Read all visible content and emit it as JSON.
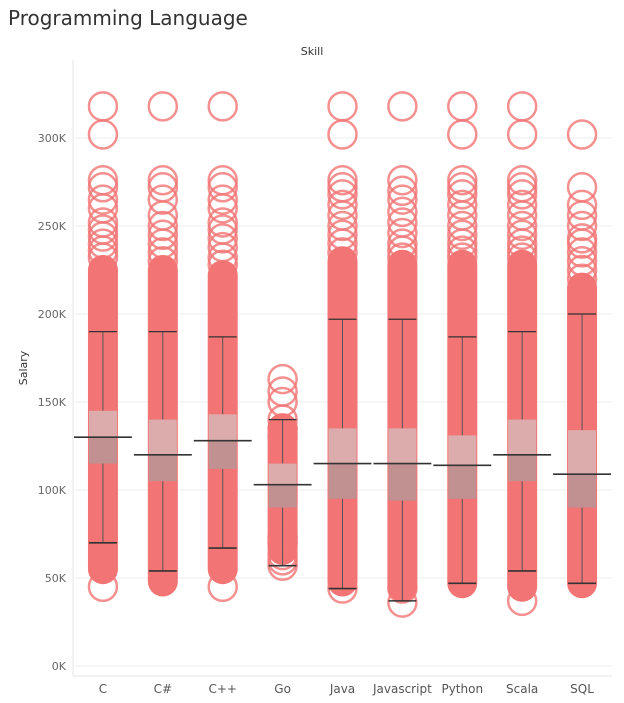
{
  "title": "Programming Language",
  "chart_data": {
    "type": "box",
    "column_header": "Skill",
    "ylabel": "Salary",
    "ylim": [
      0,
      330000
    ],
    "yticks": [
      0,
      50000,
      100000,
      150000,
      200000,
      250000,
      300000
    ],
    "ytick_labels": [
      "0K",
      "50K",
      "100K",
      "150K",
      "200K",
      "250K",
      "300K"
    ],
    "grid": true,
    "colors": {
      "points": "#f27474",
      "box": "#d9b3b3",
      "whisker": "#555555",
      "reference": "#333333"
    },
    "categories": [
      "C",
      "C#",
      "C++",
      "Go",
      "Java",
      "Javascript",
      "Python",
      "Scala",
      "SQL"
    ],
    "series": [
      {
        "category": "C",
        "lower_whisker": 70000,
        "q1": 115000,
        "median": 130000,
        "q3": 145000,
        "upper_whisker": 190000,
        "reference": 130000,
        "dense_min": 55000,
        "dense_max": 225000,
        "outliers": [
          45000,
          232000,
          236000,
          240000,
          244000,
          248000,
          252000,
          260000,
          265000,
          272000,
          276000,
          302000,
          318000
        ]
      },
      {
        "category": "C#",
        "lower_whisker": 54000,
        "q1": 105000,
        "median": 120000,
        "q3": 140000,
        "upper_whisker": 190000,
        "reference": 120000,
        "dense_min": 48000,
        "dense_max": 225000,
        "outliers": [
          230000,
          235000,
          240000,
          245000,
          250000,
          256000,
          265000,
          272000,
          276000,
          318000
        ]
      },
      {
        "category": "C++",
        "lower_whisker": 67000,
        "q1": 112000,
        "median": 128000,
        "q3": 143000,
        "upper_whisker": 187000,
        "reference": 128000,
        "dense_min": 55000,
        "dense_max": 222000,
        "outliers": [
          45000,
          228000,
          232000,
          238000,
          243000,
          248000,
          252000,
          260000,
          265000,
          272000,
          276000,
          318000
        ]
      },
      {
        "category": "Go",
        "lower_whisker": 57000,
        "q1": 90000,
        "median": 103000,
        "q3": 115000,
        "upper_whisker": 140000,
        "reference": 103000,
        "dense_min": 66000,
        "dense_max": 135000,
        "outliers": [
          57000,
          60000,
          63000,
          70000,
          73000,
          130000,
          135000,
          140000,
          150000,
          156000,
          163000
        ]
      },
      {
        "category": "Java",
        "lower_whisker": 44000,
        "q1": 95000,
        "median": 115000,
        "q3": 135000,
        "upper_whisker": 197000,
        "reference": 115000,
        "dense_min": 48000,
        "dense_max": 230000,
        "outliers": [
          44000,
          235000,
          240000,
          245000,
          250000,
          256000,
          262000,
          268000,
          272000,
          276000,
          302000,
          318000
        ]
      },
      {
        "category": "Javascript",
        "lower_whisker": 37000,
        "q1": 94000,
        "median": 115000,
        "q3": 135000,
        "upper_whisker": 197000,
        "reference": 115000,
        "dense_min": 45000,
        "dense_max": 228000,
        "outliers": [
          36000,
          44000,
          232000,
          236000,
          240000,
          246000,
          252000,
          258000,
          265000,
          270000,
          276000,
          318000
        ]
      },
      {
        "category": "Python",
        "lower_whisker": 47000,
        "q1": 95000,
        "median": 114000,
        "q3": 131000,
        "upper_whisker": 187000,
        "reference": 114000,
        "dense_min": 47000,
        "dense_max": 228000,
        "outliers": [
          232000,
          236000,
          240000,
          245000,
          250000,
          256000,
          262000,
          268000,
          272000,
          276000,
          302000,
          318000
        ]
      },
      {
        "category": "Scala",
        "lower_whisker": 54000,
        "q1": 105000,
        "median": 120000,
        "q3": 140000,
        "upper_whisker": 190000,
        "reference": 120000,
        "dense_min": 45000,
        "dense_max": 228000,
        "outliers": [
          37000,
          232000,
          236000,
          240000,
          245000,
          250000,
          256000,
          262000,
          268000,
          272000,
          276000,
          302000,
          318000
        ]
      },
      {
        "category": "SQL",
        "lower_whisker": 47000,
        "q1": 90000,
        "median": 109000,
        "q3": 134000,
        "upper_whisker": 200000,
        "reference": 109000,
        "dense_min": 47000,
        "dense_max": 215000,
        "outliers": [
          220000,
          225000,
          230000,
          235000,
          240000,
          243000,
          250000,
          256000,
          262000,
          272000,
          302000
        ]
      }
    ]
  }
}
